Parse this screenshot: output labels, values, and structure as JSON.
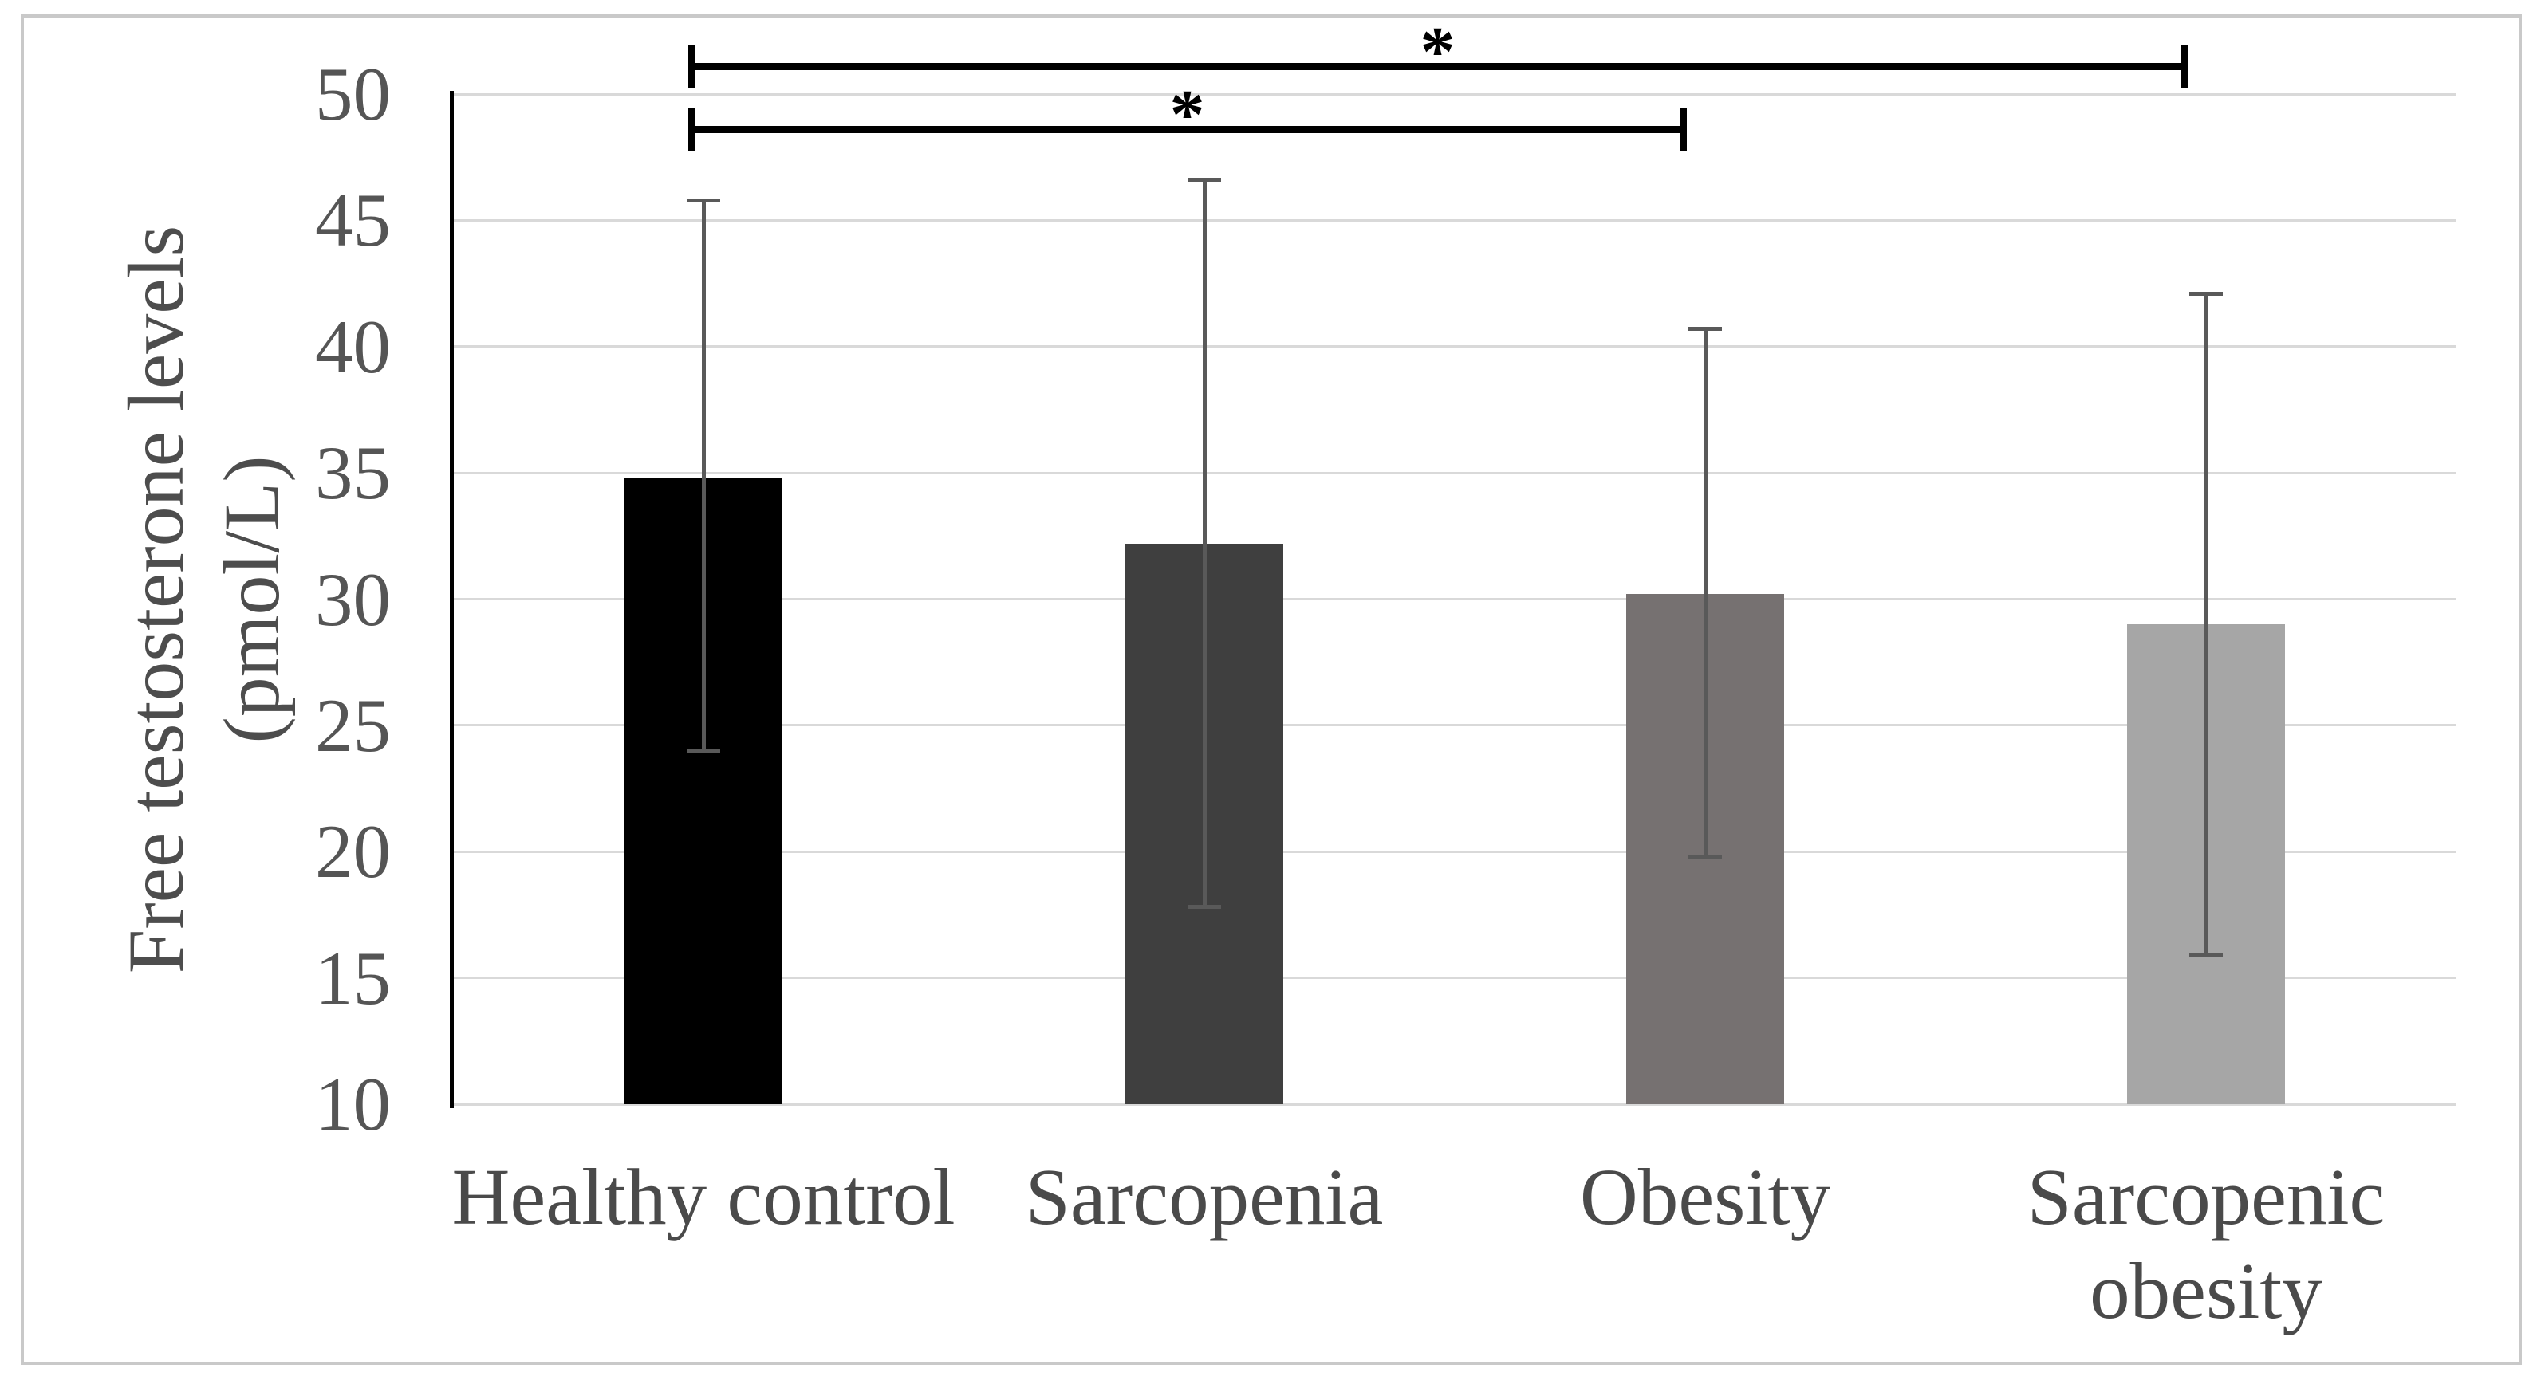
{
  "figure": {
    "background_color": "#ffffff",
    "border_color": "#c9c9c9"
  },
  "chart_data": {
    "type": "bar",
    "title": "",
    "xlabel": "",
    "ylabel": "Free testosterone levels (pmol/L)",
    "ylabel_display": "Free testosterone levels\n(pmol/L)",
    "categories": [
      "Healthy control",
      "Sarcopenia",
      "Obesity",
      "Sarcopenic obesity"
    ],
    "category_display": [
      "Healthy control",
      "Sarcopenia",
      "Obesity",
      "Sarcopenic\nobesity"
    ],
    "values": [
      34.8,
      32.2,
      30.2,
      29.0
    ],
    "error_upper": [
      45.8,
      46.6,
      40.7,
      42.1
    ],
    "error_lower": [
      24.0,
      17.8,
      19.8,
      15.9
    ],
    "bar_colors": [
      "#000000",
      "#3f3f3f",
      "#767171",
      "#a6a6a6"
    ],
    "error_bar_color": "#595959",
    "ylim": [
      10,
      50
    ],
    "yticks": [
      10,
      15,
      20,
      25,
      30,
      35,
      40,
      45,
      50
    ],
    "grid": true,
    "gridline_color": "#d9d9d9",
    "axis_color": "#000000",
    "legend_position": "none",
    "significance_brackets": [
      {
        "from": "Healthy control",
        "to": "Sarcopenic obesity",
        "from_index": 0,
        "to_index": 3,
        "label": "*",
        "level": 51.1
      },
      {
        "from": "Healthy control",
        "to": "Obesity",
        "from_index": 0,
        "to_index": 2,
        "label": "*",
        "level": 48.6
      }
    ]
  }
}
